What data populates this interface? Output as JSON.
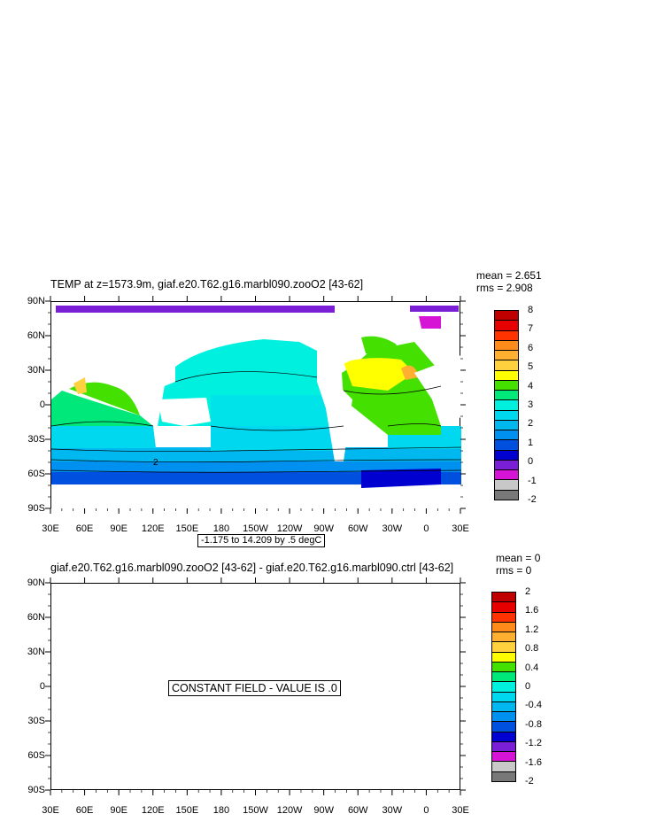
{
  "chart_data": [
    {
      "type": "heatmap",
      "title": "TEMP at z=1573.9m, giaf.e20.T62.g16.marbl090.zooO2 [43-62]",
      "stats": {
        "mean": "mean = 2.651",
        "rms": "rms = 2.908"
      },
      "x_ticks": [
        "30E",
        "60E",
        "90E",
        "120E",
        "150E",
        "180",
        "150W",
        "120W",
        "90W",
        "60W",
        "30W",
        "0",
        "30E"
      ],
      "y_ticks": [
        "90N",
        "60N",
        "30N",
        "0",
        "30S",
        "60S",
        "90S"
      ],
      "info": "-1.175 to 14.209 by .5 degC",
      "contour_label": "2",
      "colorbar": {
        "labels": [
          "8",
          "7",
          "6",
          "5",
          "4",
          "3",
          "2",
          "1",
          "0",
          "-1",
          "-2"
        ],
        "colors": [
          "#c00000",
          "#e60000",
          "#ff3300",
          "#ff8c1a",
          "#ffb030",
          "#ffd13f",
          "#ffff00",
          "#44e000",
          "#00e87a",
          "#00f0e0",
          "#00d8f0",
          "#00b8f0",
          "#0090f0",
          "#0050e0",
          "#0000d0",
          "#7a1fd6",
          "#d614d6",
          "#c8c8c8",
          "#787878"
        ],
        "levels": 19
      }
    },
    {
      "type": "heatmap",
      "title": "giaf.e20.T62.g16.marbl090.zooO2 [43-62] - giaf.e20.T62.g16.marbl090.ctrl [43-62]",
      "stats": {
        "mean": "mean = 0",
        "rms": "rms = 0"
      },
      "x_ticks": [
        "30E",
        "60E",
        "90E",
        "120E",
        "150E",
        "180",
        "150W",
        "120W",
        "90W",
        "60W",
        "30W",
        "0",
        "30E"
      ],
      "y_ticks": [
        "90N",
        "60N",
        "30N",
        "0",
        "30S",
        "60S",
        "90S"
      ],
      "message": "CONSTANT FIELD - VALUE IS .0",
      "colorbar": {
        "labels": [
          "2",
          "1.6",
          "1.2",
          "0.8",
          "0.4",
          "0",
          "-0.4",
          "-0.8",
          "-1.2",
          "-1.6",
          "-2"
        ],
        "colors": [
          "#c00000",
          "#e60000",
          "#ff3300",
          "#ff8c1a",
          "#ffb030",
          "#ffd13f",
          "#ffff00",
          "#44e000",
          "#00e87a",
          "#00f0e0",
          "#00d8f0",
          "#00b8f0",
          "#0090f0",
          "#0050e0",
          "#0000d0",
          "#7a1fd6",
          "#d614d6",
          "#c8c8c8",
          "#787878"
        ],
        "levels": 19
      }
    }
  ]
}
